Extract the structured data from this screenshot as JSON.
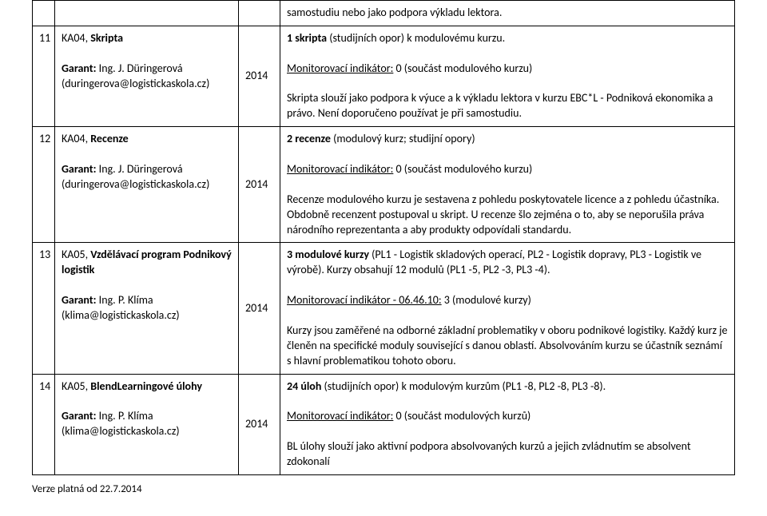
{
  "rows": [
    {
      "num": "",
      "left": "",
      "year": "",
      "right_html": "samostudiu nebo jako podpora výkladu lektora."
    },
    {
      "num": "11",
      "left_html": "KA04, <b>Skripta</b><br><br><b>Garant:</b> Ing. J. Düringerová (duringerova@logistickaskola.cz)",
      "year": "2014",
      "right_html": "<b>1 skripta</b> (studijních opor) k modulovému kurzu.<br><br><span class=\"u\">Monitorovací indikátor:</span> 0 (součást modulového kurzu)<br><br>Skripta slouží jako podpora k výuce a k výkladu lektora v kurzu EBC*L - Podniková ekonomika a právo. Není doporučeno používat je při samostudiu."
    },
    {
      "num": "12",
      "left_html": "KA04, <b>Recenze</b><br><br><b>Garant:</b> Ing. J. Düringerová (duringerova@logistickaskola.cz)",
      "year": "2014",
      "right_html": "<b>2 recenze</b> (modulový kurz; studijní opory)<br><br><span class=\"u\">Monitorovací indikátor:</span> 0 (součást modulového kurzu)<br><br>Recenze modulového kurzu je sestavena z pohledu poskytovatele licence a z pohledu účastníka. Obdobně recenzent postupoval u skript. U recenze šlo zejména o to, aby se neporušila práva národního reprezentanta a aby produkty odpovídali standardu."
    },
    {
      "num": "13",
      "left_html": "KA05, <b>Vzdělávací program Podnikový logistik</b><br><br><b>Garant:</b> Ing. P. Klíma (klima@logistickaskola.cz)",
      "year": "2014",
      "right_html": "<b>3 modulové kurzy</b> (PL1 - Logistik skladových operací, PL2 - Logistik dopravy, PL3 - Logistik ve výrobě). Kurzy obsahují 12 modulů (PL1 -5, PL2 -3, PL3 -4).<br><br><span class=\"u\">Monitorovací indikátor - 06.46.10:</span> 3 (modulové kurzy)<br><br>Kurzy jsou zaměřené na odborné základní problematiky v oboru podnikové logistiky. Každý kurz je členěn na specifické moduly související s danou oblastí. Absolvováním kurzu se účastník seznámí s hlavní problematikou tohoto oboru."
    },
    {
      "num": "14",
      "left_html": "KA05, <b>BlendLearningové úlohy</b><br><br><b>Garant:</b> Ing. P. Klíma (klima@logistickaskola.cz)",
      "year": "2014",
      "right_html": "<b>24 úloh</b> (studijních opor) k modulovým kurzům (PL1 -8, PL2 -8, PL3 -8).<br><br><span class=\"u\">Monitorovací indikátor:</span> 0 (součást modulových kurzů)<br><br>BL úlohy slouží jako aktivní podpora absolvovaných kurzů a jejich zvládnutím se absolvent zdokonalí"
    }
  ],
  "footer": "Verze platná od 22.7.2014"
}
